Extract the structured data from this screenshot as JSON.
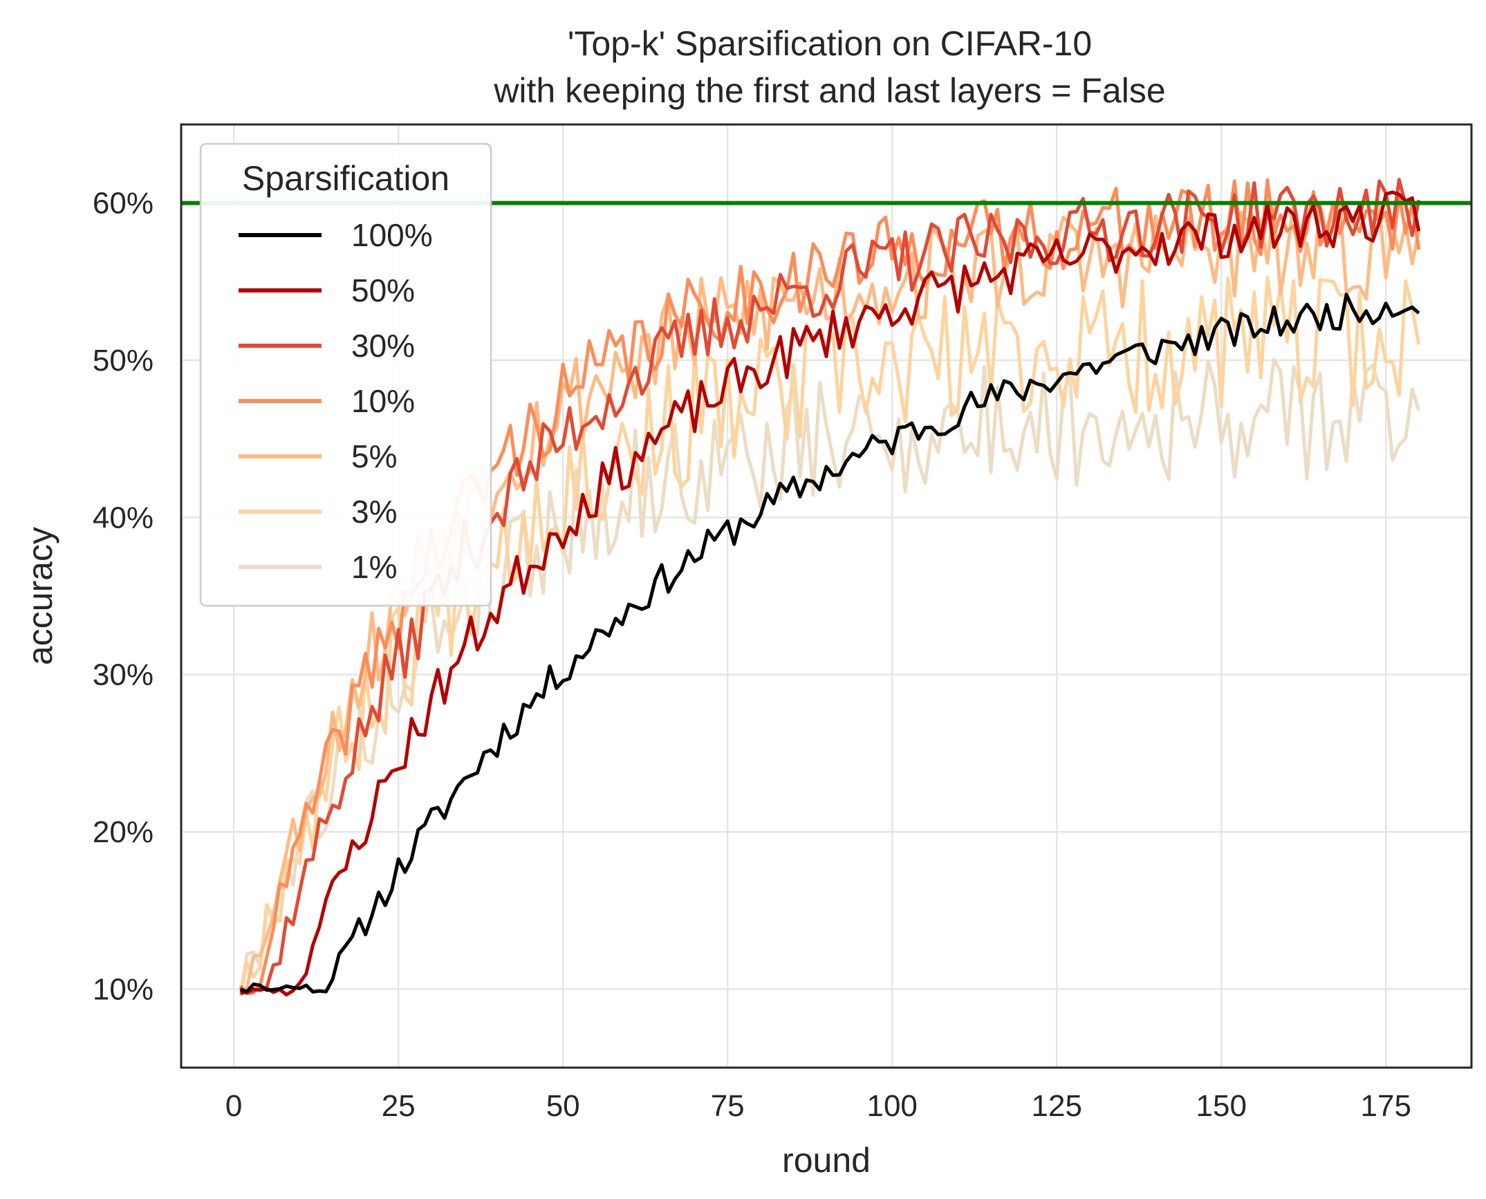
{
  "chart_data": {
    "type": "line",
    "title_line1": "'Top-k' Sparsification on CIFAR-10",
    "title_line2": "with keeping the first and last layers = False",
    "xlabel": "round",
    "ylabel": "accuracy",
    "xlim": [
      -8,
      188
    ],
    "ylim": [
      0.05,
      0.65
    ],
    "xticks": [
      0,
      25,
      50,
      75,
      100,
      125,
      150,
      175
    ],
    "xtick_labels": [
      "0",
      "25",
      "50",
      "75",
      "100",
      "125",
      "150",
      "175"
    ],
    "yticks": [
      0.1,
      0.2,
      0.3,
      0.4,
      0.5,
      0.6
    ],
    "ytick_labels": [
      "10%",
      "20%",
      "30%",
      "40%",
      "50%",
      "60%"
    ],
    "grid": true,
    "legend": {
      "title": "Sparsification",
      "placement": "upper-left"
    },
    "reference_line": {
      "y": 0.6,
      "color": "#008000"
    },
    "series": [
      {
        "name": "100%",
        "color": "#000000",
        "seed": 11,
        "k0": 0.101,
        "rate": 0.0155,
        "delay": 14,
        "final": 0.574,
        "noise": 0.006
      },
      {
        "name": "50%",
        "color": "#b30000",
        "seed": 23,
        "k0": 0.098,
        "rate": 0.0215,
        "delay": 9,
        "final": 0.605,
        "noise": 0.009
      },
      {
        "name": "30%",
        "color": "#e34a33",
        "seed": 37,
        "k0": 0.1,
        "rate": 0.027,
        "delay": 5,
        "final": 0.6,
        "noise": 0.012
      },
      {
        "name": "10%",
        "color": "#fc8d59",
        "seed": 41,
        "k0": 0.099,
        "rate": 0.03,
        "delay": 3,
        "final": 0.595,
        "noise": 0.014
      },
      {
        "name": "5%",
        "color": "#fdbb84",
        "seed": 53,
        "k0": 0.1,
        "rate": 0.032,
        "delay": 2,
        "final": 0.572,
        "noise": 0.018
      },
      {
        "name": "3%",
        "color": "#fdd49e",
        "seed": 67,
        "k0": 0.097,
        "rate": 0.03,
        "delay": 1,
        "final": 0.515,
        "noise": 0.024
      },
      {
        "name": "1%",
        "color": "#ecdcc4",
        "seed": 79,
        "k0": 0.096,
        "rate": 0.034,
        "delay": 1,
        "final": 0.465,
        "noise": 0.022
      }
    ],
    "x_start": 1,
    "x_end": 180
  }
}
